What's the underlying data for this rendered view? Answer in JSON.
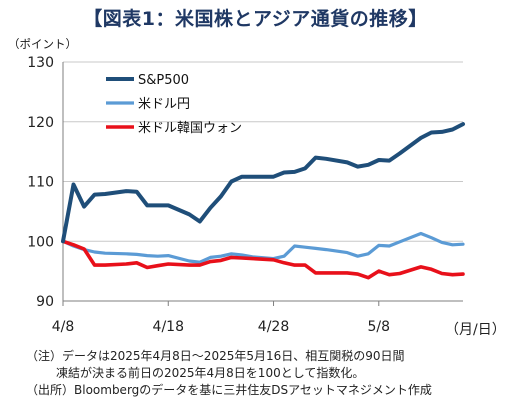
{
  "title": "【図表1：米国株とアジア通貨の推移】",
  "chart_data": {
    "type": "line",
    "ylabel": "（ポイント）",
    "xlabel": "（月/日）",
    "ylim": [
      90,
      130
    ],
    "yticks": [
      90,
      100,
      110,
      120,
      130
    ],
    "xticks": [
      {
        "label": "4/8",
        "day": 0
      },
      {
        "label": "4/18",
        "day": 10
      },
      {
        "label": "4/28",
        "day": 20
      },
      {
        "label": "5/8",
        "day": 30
      }
    ],
    "x_day_range": [
      0,
      38
    ],
    "grid": "horizontal",
    "legend": "top-left",
    "series": [
      {
        "name": "S&P500",
        "color": "#1f4e79",
        "x": [
          0,
          1,
          2,
          3,
          4,
          6,
          7,
          8,
          9,
          10,
          12,
          13,
          14,
          15,
          16,
          17,
          18,
          20,
          21,
          22,
          23,
          24,
          25,
          27,
          28,
          29,
          30,
          31,
          32,
          34,
          35,
          36,
          37,
          38
        ],
        "values": [
          100,
          109.5,
          105.8,
          107.8,
          107.9,
          108.4,
          108.3,
          106.0,
          106.0,
          106.0,
          104.5,
          103.3,
          105.6,
          107.5,
          110.0,
          110.8,
          110.8,
          110.8,
          111.5,
          111.6,
          112.2,
          114.0,
          113.8,
          113.2,
          112.5,
          112.8,
          113.6,
          113.5,
          114.7,
          117.3,
          118.2,
          118.3,
          118.7,
          119.6
        ]
      },
      {
        "name": "米ドル円",
        "color": "#5b9bd5",
        "x": [
          0,
          1,
          2,
          3,
          4,
          6,
          7,
          8,
          9,
          10,
          12,
          13,
          14,
          15,
          16,
          17,
          18,
          20,
          21,
          22,
          23,
          24,
          25,
          27,
          28,
          29,
          30,
          31,
          32,
          34,
          35,
          36,
          37,
          38
        ],
        "values": [
          100,
          99.2,
          98.6,
          98.2,
          98.0,
          97.9,
          97.8,
          97.6,
          97.5,
          97.6,
          96.7,
          96.5,
          97.3,
          97.5,
          97.9,
          97.7,
          97.4,
          97.1,
          97.5,
          99.2,
          99.0,
          98.8,
          98.6,
          98.1,
          97.5,
          97.9,
          99.3,
          99.2,
          99.9,
          101.3,
          100.6,
          99.8,
          99.4,
          99.5
        ]
      },
      {
        "name": "米ドル韓国ウォン",
        "color": "#e8101a",
        "x": [
          0,
          1,
          2,
          3,
          4,
          6,
          7,
          8,
          9,
          10,
          12,
          13,
          14,
          15,
          16,
          17,
          18,
          20,
          21,
          22,
          23,
          24,
          25,
          27,
          28,
          29,
          30,
          31,
          32,
          34,
          35,
          36,
          37,
          38
        ],
        "values": [
          100,
          99.4,
          98.7,
          96.0,
          96.0,
          96.2,
          96.4,
          95.6,
          95.9,
          96.2,
          96.0,
          96.0,
          96.6,
          96.8,
          97.3,
          97.2,
          97.1,
          96.9,
          96.4,
          96.0,
          96.0,
          94.7,
          94.7,
          94.7,
          94.5,
          93.9,
          95.0,
          94.4,
          94.6,
          95.7,
          95.3,
          94.6,
          94.4,
          94.5
        ]
      }
    ]
  },
  "notes": [
    "（注）データは2025年4月8日～2025年5月16日、相互関税の90日間",
    "凍結が決まる前日の2025年4月8日を100として指数化。",
    "（出所）Bloombergのデータを基に三井住友DSアセットマネジメント作成"
  ]
}
